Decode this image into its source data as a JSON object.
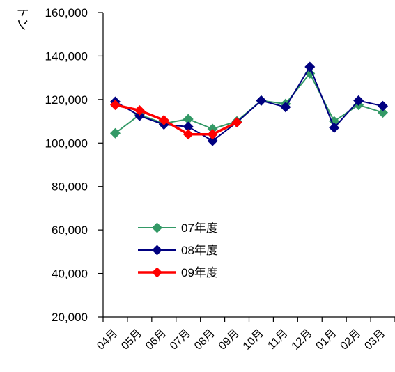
{
  "chart_data": {
    "type": "line",
    "title": "",
    "ylabel": "トン",
    "xlabel": "",
    "categories": [
      "04月",
      "05月",
      "06月",
      "07月",
      "08月",
      "09月",
      "10月",
      "11月",
      "12月",
      "01月",
      "02月",
      "03月"
    ],
    "ylim": [
      20000,
      160000
    ],
    "yticks": [
      20000,
      40000,
      60000,
      80000,
      100000,
      120000,
      140000,
      160000
    ],
    "ytick_labels": [
      "20,000",
      "40,000",
      "60,000",
      "80,000",
      "100,000",
      "120,000",
      "140,000",
      "160,000"
    ],
    "grid": false,
    "legend_position": "center-left",
    "series": [
      {
        "name": "07年度",
        "color": "#339966",
        "values": [
          104500,
          113000,
          109000,
          111000,
          106500,
          110000,
          119500,
          118000,
          132000,
          110000,
          117500,
          114000
        ]
      },
      {
        "name": "08年度",
        "color": "#000080",
        "values": [
          119000,
          112500,
          108500,
          107500,
          101000,
          109500,
          119500,
          116500,
          135000,
          107000,
          119500,
          117000
        ]
      },
      {
        "name": "09年度",
        "color": "#ff0000",
        "values": [
          117500,
          115000,
          110500,
          104000,
          104000,
          109500,
          null,
          null,
          null,
          null,
          null,
          null
        ]
      }
    ]
  }
}
